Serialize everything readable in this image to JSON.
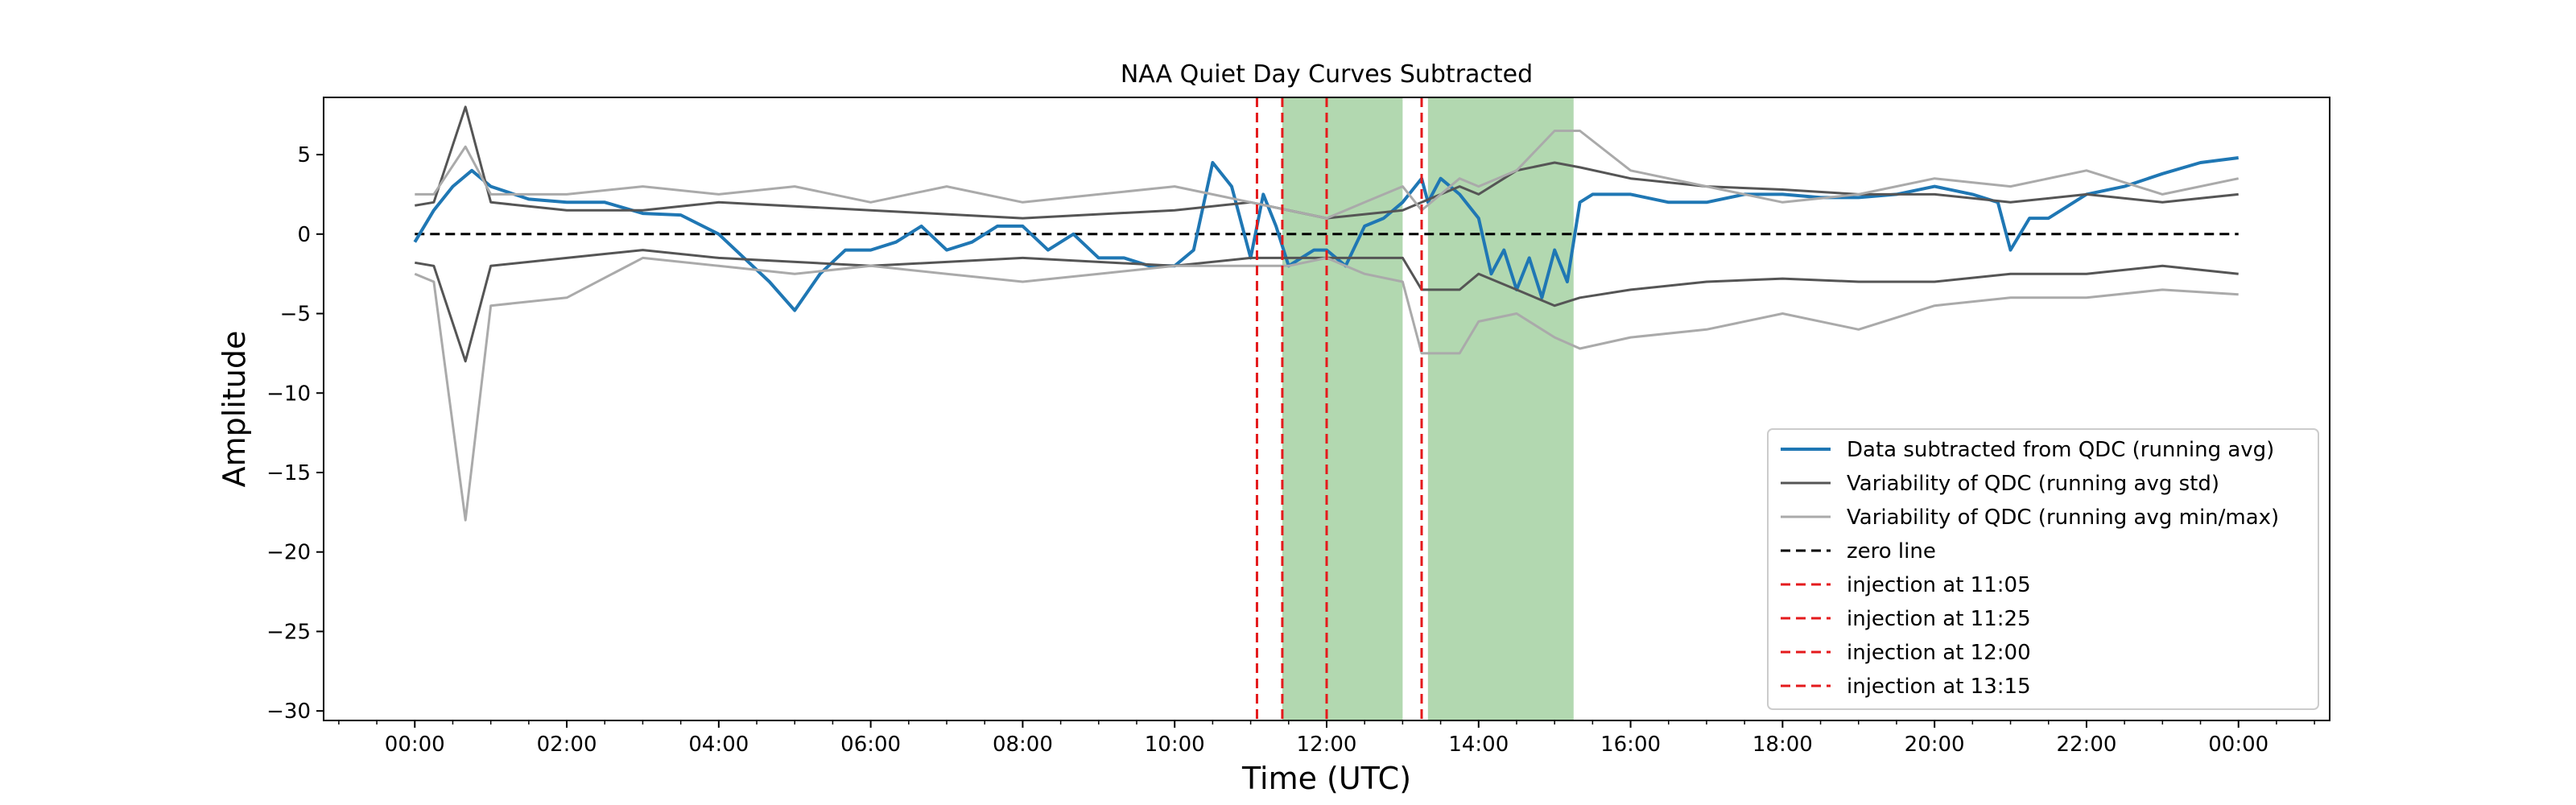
{
  "chart_data": {
    "type": "line",
    "title": "NAA Quiet Day Curves Subtracted",
    "xlabel": "Time (UTC)",
    "ylabel": "Amplitude",
    "xlim_hours": [
      -1.2,
      25.2
    ],
    "ylim": [
      -30.6,
      8.6
    ],
    "x_tick_labels": [
      "00:00",
      "02:00",
      "04:00",
      "06:00",
      "08:00",
      "10:00",
      "12:00",
      "14:00",
      "16:00",
      "18:00",
      "20:00",
      "22:00",
      "00:00"
    ],
    "y_ticks": [
      5,
      0,
      -5,
      -10,
      -15,
      -20,
      -25,
      -30
    ],
    "y_tick_labels": [
      "5",
      "0",
      "−5",
      "−10",
      "−15",
      "−20",
      "−25",
      "−30"
    ],
    "legend_position": "lower right",
    "shaded_regions": [
      {
        "start": "11:25",
        "end": "13:00",
        "color": "#b2d8b0"
      },
      {
        "start": "13:20",
        "end": "15:15",
        "color": "#b2d8b0"
      }
    ],
    "injections": [
      {
        "time": "11:05",
        "label": "injection at 11:05",
        "color": "#e41a1c"
      },
      {
        "time": "11:25",
        "label": "injection at 11:25",
        "color": "#e41a1c"
      },
      {
        "time": "12:00",
        "label": "injection at 12:00",
        "color": "#e41a1c"
      },
      {
        "time": "13:15",
        "label": "injection at 13:15",
        "color": "#e41a1c"
      }
    ],
    "zero_line": {
      "label": "zero line",
      "value": 0,
      "color": "#000000"
    },
    "series": [
      {
        "name": "Data subtracted from QDC (running avg)",
        "color": "#1f77b4",
        "x": [
          "00:00",
          "00:15",
          "00:30",
          "00:45",
          "01:00",
          "01:30",
          "02:00",
          "02:30",
          "03:00",
          "03:30",
          "04:00",
          "04:20",
          "04:40",
          "05:00",
          "05:20",
          "05:40",
          "06:00",
          "06:20",
          "06:40",
          "07:00",
          "07:20",
          "07:40",
          "08:00",
          "08:20",
          "08:40",
          "09:00",
          "09:20",
          "09:40",
          "10:00",
          "10:15",
          "10:30",
          "10:45",
          "11:00",
          "11:10",
          "11:20",
          "11:30",
          "11:40",
          "11:50",
          "12:00",
          "12:15",
          "12:30",
          "12:45",
          "13:00",
          "13:15",
          "13:20",
          "13:30",
          "13:45",
          "14:00",
          "14:10",
          "14:20",
          "14:30",
          "14:40",
          "14:50",
          "15:00",
          "15:10",
          "15:20",
          "15:30",
          "16:00",
          "16:30",
          "17:00",
          "17:30",
          "18:00",
          "18:30",
          "19:00",
          "19:30",
          "20:00",
          "20:30",
          "20:50",
          "21:00",
          "21:15",
          "21:30",
          "22:00",
          "22:30",
          "23:00",
          "23:30",
          "24:00"
        ],
        "y": [
          -0.5,
          1.5,
          3.0,
          4.0,
          3.0,
          2.2,
          2.0,
          2.0,
          1.3,
          1.2,
          0.0,
          -1.5,
          -3.0,
          -4.8,
          -2.5,
          -1.0,
          -1.0,
          -0.5,
          0.5,
          -1.0,
          -0.5,
          0.5,
          0.5,
          -1.0,
          0.0,
          -1.5,
          -1.5,
          -2.0,
          -2.0,
          -1.0,
          4.5,
          3.0,
          -1.5,
          2.5,
          0.5,
          -2.0,
          -1.5,
          -1.0,
          -1.0,
          -2.0,
          0.5,
          1.0,
          2.0,
          3.5,
          2.0,
          3.5,
          2.5,
          1.0,
          -2.5,
          -1.0,
          -3.5,
          -1.5,
          -4.0,
          -1.0,
          -3.0,
          2.0,
          2.5,
          2.5,
          2.0,
          2.0,
          2.5,
          2.5,
          2.3,
          2.3,
          2.5,
          3.0,
          2.5,
          2.0,
          -1.0,
          1.0,
          1.0,
          2.5,
          3.0,
          3.8,
          4.5,
          4.8
        ]
      },
      {
        "name": "Variability of QDC (running avg std)",
        "color": "#555555",
        "x": [
          "00:00",
          "00:15",
          "00:40",
          "01:00",
          "02:00",
          "03:00",
          "04:00",
          "06:00",
          "08:00",
          "10:00",
          "11:00",
          "12:00",
          "13:00",
          "13:15",
          "13:45",
          "14:00",
          "14:30",
          "15:00",
          "15:20",
          "16:00",
          "17:00",
          "18:00",
          "19:00",
          "20:00",
          "21:00",
          "22:00",
          "23:00",
          "24:00"
        ],
        "y": [
          1.8,
          2.0,
          8.0,
          2.0,
          1.5,
          1.5,
          2.0,
          1.5,
          1.0,
          1.5,
          2.0,
          1.0,
          1.5,
          2.0,
          3.0,
          2.5,
          4.0,
          4.5,
          4.2,
          3.5,
          3.0,
          2.8,
          2.5,
          2.5,
          2.0,
          2.5,
          2.0,
          2.5
        ]
      },
      {
        "name": "Variability of QDC (running avg std) lower",
        "color": "#555555",
        "x": [
          "00:00",
          "00:15",
          "00:40",
          "01:00",
          "02:00",
          "03:00",
          "04:00",
          "06:00",
          "08:00",
          "10:00",
          "11:00",
          "12:00",
          "13:00",
          "13:15",
          "13:45",
          "14:00",
          "14:30",
          "15:00",
          "15:20",
          "16:00",
          "17:00",
          "18:00",
          "19:00",
          "20:00",
          "21:00",
          "22:00",
          "23:00",
          "24:00"
        ],
        "y": [
          -1.8,
          -2.0,
          -8.0,
          -2.0,
          -1.5,
          -1.0,
          -1.5,
          -2.0,
          -1.5,
          -2.0,
          -1.5,
          -1.5,
          -1.5,
          -3.5,
          -3.5,
          -2.5,
          -3.5,
          -4.5,
          -4.0,
          -3.5,
          -3.0,
          -2.8,
          -3.0,
          -3.0,
          -2.5,
          -2.5,
          -2.0,
          -2.5
        ]
      },
      {
        "name": "Variability of QDC (running avg min/max)",
        "color": "#aaaaaa",
        "x": [
          "00:00",
          "00:15",
          "00:40",
          "01:00",
          "02:00",
          "03:00",
          "04:00",
          "05:00",
          "06:00",
          "07:00",
          "08:00",
          "09:00",
          "10:00",
          "11:00",
          "11:30",
          "12:00",
          "12:30",
          "13:00",
          "13:15",
          "13:45",
          "14:00",
          "14:30",
          "15:00",
          "15:20",
          "16:00",
          "17:00",
          "18:00",
          "19:00",
          "20:00",
          "21:00",
          "22:00",
          "23:00",
          "24:00"
        ],
        "y": [
          2.5,
          2.5,
          5.5,
          2.5,
          2.5,
          3.0,
          2.5,
          3.0,
          2.0,
          3.0,
          2.0,
          2.5,
          3.0,
          2.0,
          1.5,
          1.0,
          2.0,
          3.0,
          1.5,
          3.5,
          3.0,
          4.0,
          6.5,
          6.5,
          4.0,
          3.0,
          2.0,
          2.5,
          3.5,
          3.0,
          4.0,
          2.5,
          3.5
        ]
      },
      {
        "name": "Variability of QDC (running avg min/max) lower",
        "color": "#aaaaaa",
        "x": [
          "00:00",
          "00:15",
          "00:40",
          "01:00",
          "02:00",
          "03:00",
          "04:00",
          "05:00",
          "06:00",
          "07:00",
          "08:00",
          "09:00",
          "10:00",
          "11:00",
          "11:30",
          "12:00",
          "12:30",
          "13:00",
          "13:15",
          "13:45",
          "14:00",
          "14:30",
          "15:00",
          "15:20",
          "16:00",
          "17:00",
          "18:00",
          "19:00",
          "20:00",
          "21:00",
          "22:00",
          "23:00",
          "24:00"
        ],
        "y": [
          -2.5,
          -3.0,
          -18.0,
          -4.5,
          -4.0,
          -1.5,
          -2.0,
          -2.5,
          -2.0,
          -2.5,
          -3.0,
          -2.5,
          -2.0,
          -2.0,
          -2.0,
          -1.5,
          -2.5,
          -3.0,
          -7.5,
          -7.5,
          -5.5,
          -5.0,
          -6.5,
          -7.2,
          -6.5,
          -6.0,
          -5.0,
          -6.0,
          -4.5,
          -4.0,
          -4.0,
          -3.5,
          -3.8
        ]
      }
    ],
    "legend": [
      {
        "label": "Data subtracted from QDC (running avg)",
        "color": "#1f77b4",
        "style": "solid",
        "width": 4
      },
      {
        "label": "Variability of QDC (running avg std)",
        "color": "#555555",
        "style": "solid",
        "width": 3
      },
      {
        "label": "Variability of QDC (running avg min/max)",
        "color": "#aaaaaa",
        "style": "solid",
        "width": 3
      },
      {
        "label": "zero line",
        "color": "#000000",
        "style": "dashed",
        "width": 3
      },
      {
        "label": "injection at 11:05",
        "color": "#e41a1c",
        "style": "dashed",
        "width": 3
      },
      {
        "label": "injection at 11:25",
        "color": "#e41a1c",
        "style": "dashed",
        "width": 3
      },
      {
        "label": "injection at 12:00",
        "color": "#e41a1c",
        "style": "dashed",
        "width": 3
      },
      {
        "label": "injection at 13:15",
        "color": "#e41a1c",
        "style": "dashed",
        "width": 3
      }
    ]
  }
}
